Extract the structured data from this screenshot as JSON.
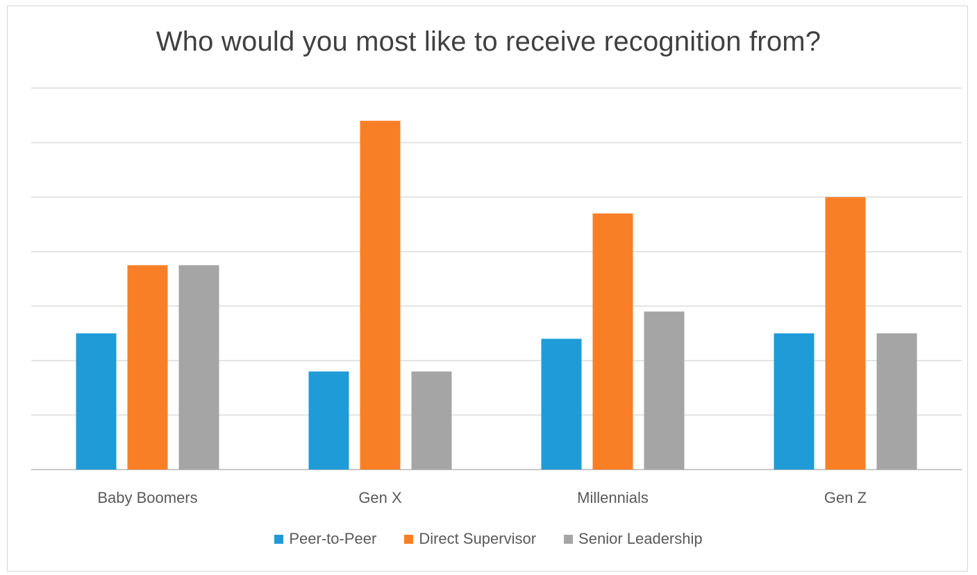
{
  "chart_data": {
    "type": "bar",
    "title": "Who would you most like to receive recognition from?",
    "categories": [
      "Baby Boomers",
      "Gen X",
      "Millennials",
      "Gen Z"
    ],
    "series": [
      {
        "name": "Peer-to-Peer",
        "color": "#1f9bd7",
        "values": [
          25,
          18,
          24,
          25
        ]
      },
      {
        "name": "Direct Supervisor",
        "color": "#f97f27",
        "values": [
          37.5,
          64,
          47,
          50
        ]
      },
      {
        "name": "Senior Leadership",
        "color": "#a5a5a5",
        "values": [
          37.5,
          18,
          29,
          25
        ]
      }
    ],
    "xlabel": "",
    "ylabel": "",
    "ylim": [
      0,
      70
    ],
    "y_gridlines": [
      0,
      10,
      20,
      30,
      40,
      50,
      60,
      70
    ],
    "y_tick_labels_visible": false,
    "grid": true,
    "legend_position": "bottom"
  }
}
